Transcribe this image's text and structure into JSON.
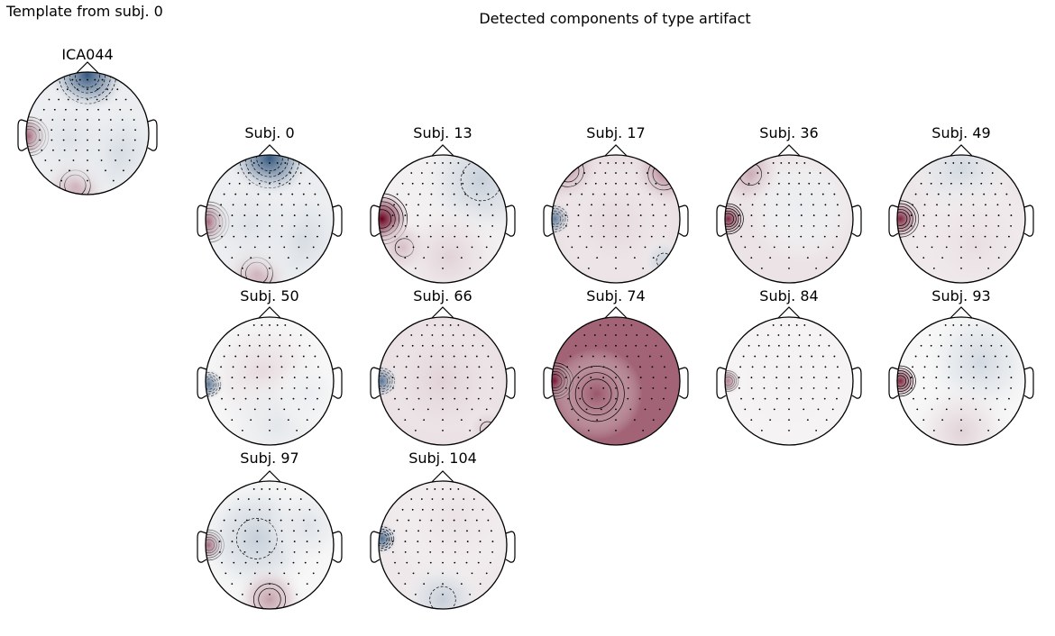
{
  "figure": {
    "template_title": "Template from subj. 0",
    "template_component": "ICA044",
    "detected_title": "Detected components of type artifact"
  },
  "colormap": {
    "neg": "#053061",
    "mid": "#f7f7f7",
    "pos": "#67001f"
  },
  "topomaps": [
    {
      "id": "template",
      "label": "ICA044",
      "blobs": [
        [
          -0.95,
          0.05,
          0.2,
          0.95
        ],
        [
          0,
          -0.95,
          0.35,
          -0.8
        ],
        [
          -0.2,
          0.85,
          0.3,
          0.35
        ],
        [
          0.45,
          0.3,
          0.45,
          -0.15
        ],
        [
          -0.3,
          0.1,
          0.5,
          -0.1
        ]
      ],
      "base": -0.05
    },
    {
      "id": "s0",
      "label": "Subj. 0",
      "blobs": [
        [
          -0.95,
          0.05,
          0.2,
          0.95
        ],
        [
          0,
          -0.95,
          0.35,
          -0.8
        ],
        [
          -0.2,
          0.85,
          0.3,
          0.35
        ],
        [
          0.45,
          0.3,
          0.45,
          -0.15
        ],
        [
          -0.3,
          0.1,
          0.5,
          -0.1
        ]
      ],
      "base": -0.05
    },
    {
      "id": "s13",
      "label": "Subj. 13",
      "blobs": [
        [
          -0.95,
          0.0,
          0.25,
          1.0
        ],
        [
          -0.6,
          0.45,
          0.25,
          0.3
        ],
        [
          0.6,
          -0.6,
          0.55,
          -0.2
        ],
        [
          0.1,
          0.6,
          0.5,
          0.15
        ]
      ],
      "base": 0.03
    },
    {
      "id": "s17",
      "label": "Subj. 17",
      "blobs": [
        [
          -0.95,
          0.0,
          0.15,
          -0.75
        ],
        [
          0.75,
          -0.7,
          0.3,
          0.45
        ],
        [
          -0.75,
          -0.75,
          0.3,
          0.35
        ],
        [
          0.0,
          0.1,
          0.6,
          0.12
        ],
        [
          0.75,
          0.65,
          0.2,
          -0.2
        ]
      ],
      "base": 0.1
    },
    {
      "id": "s36",
      "label": "Subj. 36",
      "blobs": [
        [
          -0.95,
          0.0,
          0.15,
          0.85
        ],
        [
          -0.6,
          -0.7,
          0.3,
          0.3
        ],
        [
          0.2,
          -0.2,
          0.5,
          -0.05
        ]
      ],
      "base": 0.08
    },
    {
      "id": "s49",
      "label": "Subj. 49",
      "blobs": [
        [
          -0.95,
          0.0,
          0.18,
          0.85
        ],
        [
          0.0,
          -0.8,
          0.45,
          -0.15
        ],
        [
          0.2,
          0.4,
          0.6,
          0.1
        ]
      ],
      "base": 0.07
    },
    {
      "id": "s50",
      "label": "Subj. 50",
      "blobs": [
        [
          -0.95,
          0.05,
          0.14,
          -0.8
        ],
        [
          -0.1,
          -0.1,
          0.55,
          0.12
        ],
        [
          0.1,
          0.7,
          0.5,
          -0.08
        ],
        [
          0.6,
          0.2,
          0.3,
          -0.05
        ]
      ],
      "base": 0.0
    },
    {
      "id": "s66",
      "label": "Subj. 66",
      "blobs": [
        [
          -0.95,
          0.0,
          0.15,
          -0.8
        ],
        [
          0.0,
          0.0,
          0.6,
          0.15
        ],
        [
          0.7,
          0.75,
          0.2,
          0.2
        ]
      ],
      "base": 0.1
    },
    {
      "id": "s74",
      "label": "Subj. 74",
      "blobs": [
        [
          -0.95,
          0.0,
          0.18,
          0.95
        ],
        [
          -0.3,
          0.2,
          0.4,
          0.65
        ]
      ],
      "base": 0.6
    },
    {
      "id": "s84",
      "label": "Subj. 84",
      "blobs": [
        [
          -0.95,
          0.0,
          0.12,
          0.8
        ],
        [
          0.0,
          0.0,
          0.7,
          0.03
        ]
      ],
      "base": 0.02
    },
    {
      "id": "s93",
      "label": "Subj. 93",
      "blobs": [
        [
          -0.95,
          0.0,
          0.15,
          0.85
        ],
        [
          0.3,
          -0.3,
          0.5,
          -0.15
        ],
        [
          0.0,
          0.8,
          0.45,
          0.15
        ]
      ],
      "base": 0.0
    },
    {
      "id": "s97",
      "label": "Subj. 97",
      "blobs": [
        [
          -0.95,
          0.0,
          0.15,
          0.85
        ],
        [
          -0.2,
          -0.1,
          0.55,
          -0.2
        ],
        [
          0.0,
          0.85,
          0.3,
          0.35
        ],
        [
          0.6,
          -0.3,
          0.35,
          -0.1
        ]
      ],
      "base": 0.0
    },
    {
      "id": "s104",
      "label": "Subj. 104",
      "blobs": [
        [
          -0.95,
          -0.1,
          0.14,
          -0.7
        ],
        [
          0.0,
          0.85,
          0.35,
          -0.2
        ],
        [
          0.2,
          -0.4,
          0.6,
          0.08
        ]
      ],
      "base": 0.06
    }
  ]
}
